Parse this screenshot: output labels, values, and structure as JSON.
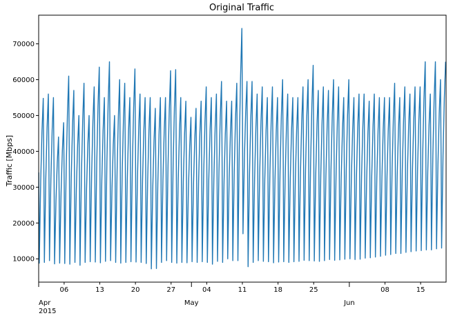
{
  "chart_data": {
    "type": "line",
    "title": "Original Traffic",
    "xlabel": "",
    "ylabel": "Traffic [Mbps]",
    "x_start": "2015-04-01",
    "x_end": "2015-06-20",
    "ylim": [
      3500,
      78000
    ],
    "yticks": [
      10000,
      20000,
      30000,
      40000,
      50000,
      60000,
      70000
    ],
    "ytick_labels": [
      "10000",
      "20000",
      "30000",
      "40000",
      "50000",
      "60000",
      "70000"
    ],
    "xticks": [
      {
        "date": "2015-04-01",
        "label": "Apr",
        "sublabel": "2015",
        "major": true
      },
      {
        "date": "2015-04-06",
        "label": "06",
        "major": false
      },
      {
        "date": "2015-04-13",
        "label": "13",
        "major": false
      },
      {
        "date": "2015-04-20",
        "label": "20",
        "major": false
      },
      {
        "date": "2015-04-27",
        "label": "27",
        "major": false
      },
      {
        "date": "2015-05-01",
        "label": "May",
        "major": true
      },
      {
        "date": "2015-05-04",
        "label": "04",
        "major": false
      },
      {
        "date": "2015-05-11",
        "label": "11",
        "major": false
      },
      {
        "date": "2015-05-18",
        "label": "18",
        "major": false
      },
      {
        "date": "2015-05-25",
        "label": "25",
        "major": false
      },
      {
        "date": "2015-06-01",
        "label": "Jun",
        "major": true
      },
      {
        "date": "2015-06-08",
        "label": "08",
        "major": false
      },
      {
        "date": "2015-06-15",
        "label": "15",
        "major": false
      }
    ],
    "grid": false,
    "line_color": "#1f77b4",
    "series": [
      {
        "daily_peak": [
          54800,
          56000,
          55000,
          44000,
          48000,
          61000,
          57000,
          50000,
          59000,
          50000,
          58000,
          63500,
          55000,
          65000,
          50000,
          60000,
          59000,
          55000,
          63000,
          56000,
          55000,
          55000,
          52000,
          55000,
          55000,
          62500,
          62800,
          55000,
          54000,
          49500,
          52000,
          54000,
          58000,
          55000,
          56000,
          59500,
          54000,
          54000,
          59000,
          74300,
          59500,
          59500,
          56000,
          58000,
          55000,
          58000,
          55000,
          60000,
          56000,
          55000,
          55000,
          58000,
          60000,
          64000,
          57000,
          58000,
          57000,
          60000,
          58000,
          55000,
          60000,
          55000,
          56000,
          56000,
          54000,
          56000,
          55000,
          55000,
          55000,
          59000,
          55000,
          58000,
          56000,
          58000,
          58000,
          65000,
          56000,
          65000,
          60000,
          65000
        ],
        "daily_trough": [
          8800,
          9000,
          9500,
          8600,
          8800,
          8700,
          8500,
          9000,
          8200,
          9000,
          9200,
          9100,
          8900,
          9300,
          9500,
          9000,
          8800,
          9000,
          9200,
          9100,
          9000,
          8700,
          7200,
          7300,
          9000,
          9500,
          9000,
          8800,
          9000,
          8900,
          9200,
          9000,
          9200,
          9000,
          8500,
          9300,
          9000,
          10000,
          9500,
          9500,
          17000,
          7800,
          9000,
          9500,
          9300,
          9200,
          8900,
          9100,
          9200,
          9000,
          9200,
          9300,
          9600,
          9500,
          9400,
          9300,
          9500,
          9800,
          9600,
          9700,
          9900,
          10000,
          9800,
          9900,
          10200,
          10300,
          10500,
          10700,
          11000,
          11200,
          11500,
          11500,
          11800,
          12000,
          12200,
          12300,
          12500,
          12500,
          12800,
          13000
        ]
      }
    ]
  }
}
